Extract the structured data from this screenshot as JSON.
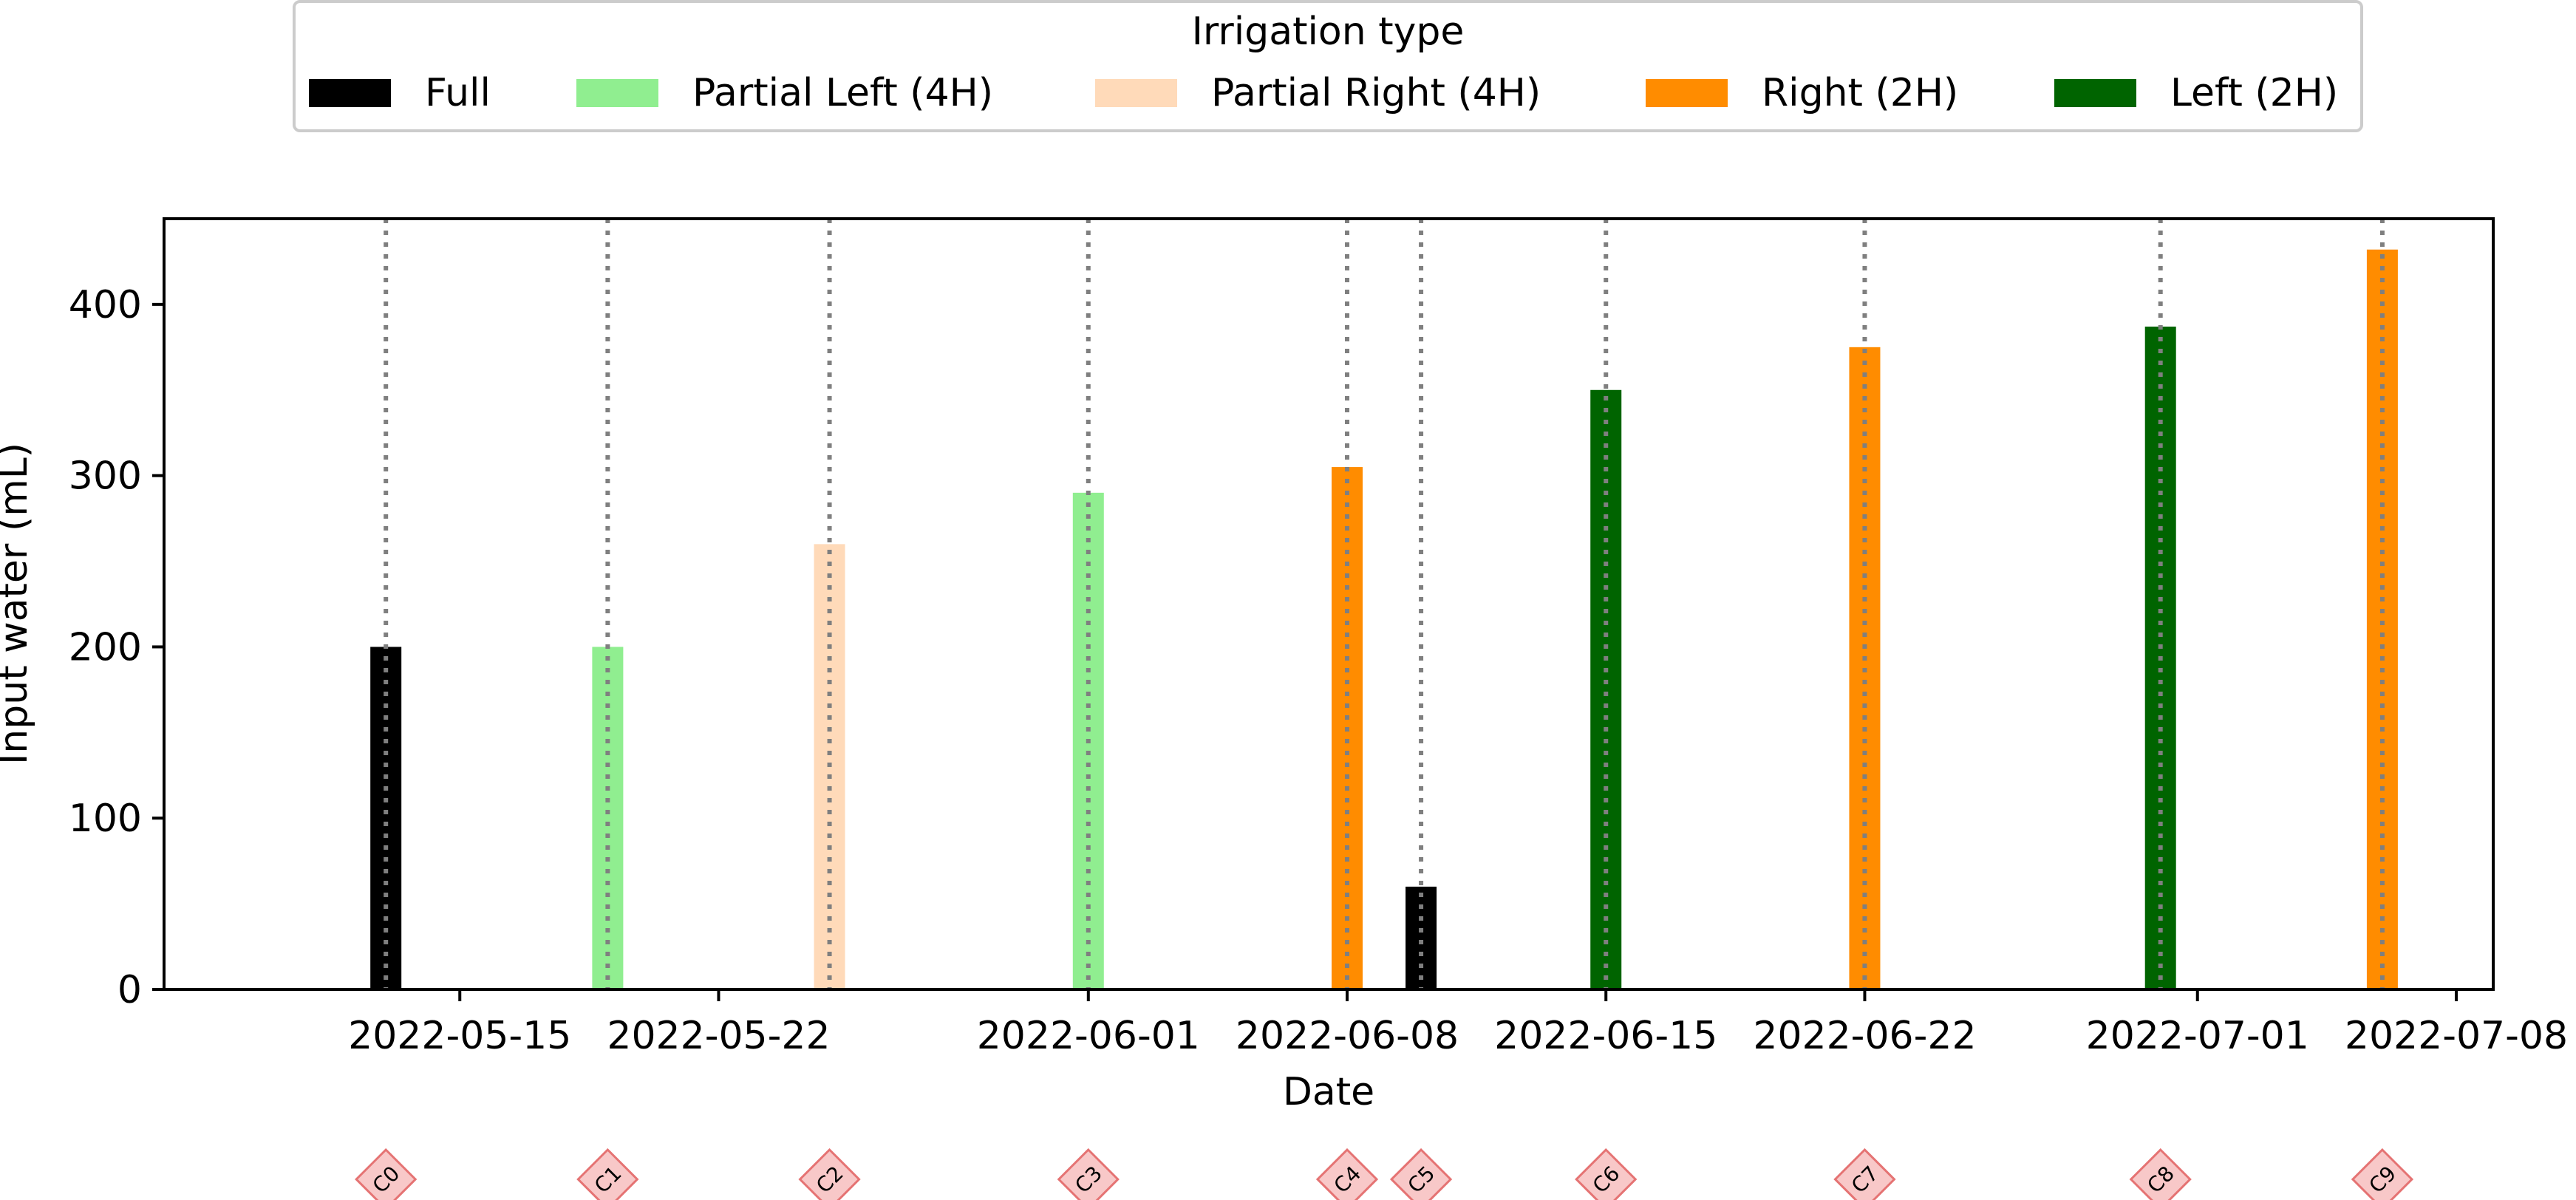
{
  "chart_data": {
    "type": "bar",
    "xlabel": "Date",
    "ylabel": "Input water (mL)",
    "ylim": [
      0,
      450
    ],
    "y_ticks": [
      0,
      100,
      200,
      300,
      400
    ],
    "xlim": [
      "2022-05-07",
      "2022-07-09"
    ],
    "x_ticks": [
      "2022-05-15",
      "2022-05-22",
      "2022-06-01",
      "2022-06-08",
      "2022-06-15",
      "2022-06-22",
      "2022-07-01",
      "2022-07-08"
    ],
    "legend": {
      "title": "Irrigation type",
      "placement": "top-center",
      "entries": [
        {
          "name": "Full",
          "color": "#000000"
        },
        {
          "name": "Partial Left (4H)",
          "color": "#90ee90"
        },
        {
          "name": "Partial Right (4H)",
          "color": "#ffdab9"
        },
        {
          "name": "Right (2H)",
          "color": "#ff8c00"
        },
        {
          "name": "Left (2H)",
          "color": "#006400"
        }
      ]
    },
    "bars": [
      {
        "date": "2022-05-13",
        "value": 200,
        "type": "Full"
      },
      {
        "date": "2022-05-19",
        "value": 200,
        "type": "Partial Left (4H)"
      },
      {
        "date": "2022-05-25",
        "value": 260,
        "type": "Partial Right (4H)"
      },
      {
        "date": "2022-06-01",
        "value": 290,
        "type": "Partial Left (4H)"
      },
      {
        "date": "2022-06-08",
        "value": 305,
        "type": "Right (2H)"
      },
      {
        "date": "2022-06-10",
        "value": 60,
        "type": "Full"
      },
      {
        "date": "2022-06-15",
        "value": 350,
        "type": "Left (2H)"
      },
      {
        "date": "2022-06-22",
        "value": 375,
        "type": "Right (2H)"
      },
      {
        "date": "2022-06-30",
        "value": 387,
        "type": "Left (2H)"
      },
      {
        "date": "2022-07-06",
        "value": 432,
        "type": "Right (2H)"
      }
    ],
    "event_lines": [
      {
        "date": "2022-05-13",
        "label": "C0"
      },
      {
        "date": "2022-05-19",
        "label": "C1"
      },
      {
        "date": "2022-05-25",
        "label": "C2"
      },
      {
        "date": "2022-06-01",
        "label": "C3"
      },
      {
        "date": "2022-06-08",
        "label": "C4"
      },
      {
        "date": "2022-06-10",
        "label": "C5"
      },
      {
        "date": "2022-06-15",
        "label": "C6"
      },
      {
        "date": "2022-06-22",
        "label": "C7"
      },
      {
        "date": "2022-06-30",
        "label": "C8"
      },
      {
        "date": "2022-07-06",
        "label": "C9"
      }
    ],
    "grid": false
  }
}
